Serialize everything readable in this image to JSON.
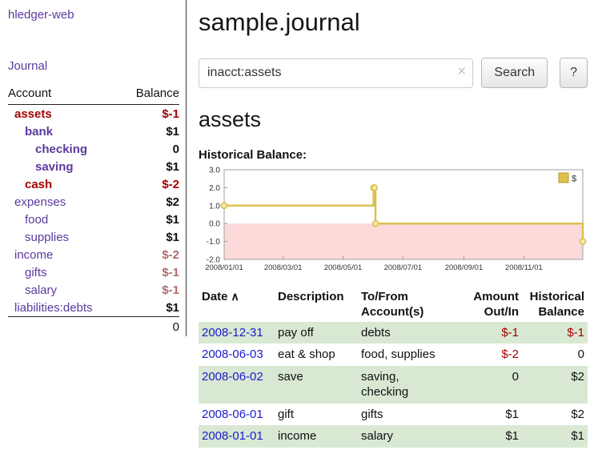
{
  "colors": {
    "link_purple": "#5b3a9e",
    "negative_strong": "#a40000",
    "negative_soft": "#b06a6a",
    "date_blue": "#1a1acd",
    "row_green": "#d9e8d3",
    "chart_line": "#dcc050",
    "chart_marker_fill": "#f5e8ae",
    "chart_negative_fill": "#fcdada"
  },
  "sidebar": {
    "app_title": "hledger-web",
    "nav": {
      "journal": "Journal"
    },
    "accounts": {
      "headers": {
        "account": "Account",
        "balance": "Balance"
      },
      "rows": [
        {
          "account": "assets",
          "balance": "$-1",
          "indent": 0,
          "bold": true,
          "name_color": "maroon",
          "balance_negative": "strong"
        },
        {
          "account": "bank",
          "balance": "$1",
          "indent": 1,
          "bold": true,
          "name_color": "purple",
          "balance_negative": null
        },
        {
          "account": "checking",
          "balance": "0",
          "indent": 2,
          "bold": true,
          "name_color": "purple",
          "balance_negative": null
        },
        {
          "account": "saving",
          "balance": "$1",
          "indent": 2,
          "bold": true,
          "name_color": "purple",
          "balance_negative": null
        },
        {
          "account": "cash",
          "balance": "$-2",
          "indent": 1,
          "bold": true,
          "name_color": "maroon",
          "balance_negative": "strong"
        },
        {
          "account": "expenses",
          "balance": "$2",
          "indent": 0,
          "bold": false,
          "name_color": "purple",
          "balance_negative": null
        },
        {
          "account": "food",
          "balance": "$1",
          "indent": 1,
          "bold": false,
          "name_color": "purple",
          "balance_negative": null
        },
        {
          "account": "supplies",
          "balance": "$1",
          "indent": 1,
          "bold": false,
          "name_color": "purple",
          "balance_negative": null
        },
        {
          "account": "income",
          "balance": "$-2",
          "indent": 0,
          "bold": false,
          "name_color": "purple",
          "balance_negative": "soft"
        },
        {
          "account": "gifts",
          "balance": "$-1",
          "indent": 1,
          "bold": false,
          "name_color": "purple",
          "balance_negative": "soft"
        },
        {
          "account": "salary",
          "balance": "$-1",
          "indent": 1,
          "bold": false,
          "name_color": "purple",
          "balance_negative": "soft"
        },
        {
          "account": "liabilities:debts",
          "balance": "$1",
          "indent": 0,
          "bold": false,
          "name_color": "purple",
          "balance_negative": null
        }
      ],
      "total": "0"
    }
  },
  "main": {
    "title": "sample.journal",
    "search": {
      "value": "inacct:assets",
      "clear_icon": "×",
      "search_button": "Search",
      "help_button": "?"
    },
    "account_heading": "assets",
    "chart_label": "Historical Balance:"
  },
  "chart_data": {
    "type": "line",
    "title": "Historical Balance",
    "style": "step-after",
    "legend": {
      "position": "top-right",
      "entries": [
        "$"
      ]
    },
    "ylim": [
      -2.0,
      3.0
    ],
    "yticks": [
      3.0,
      2.0,
      1.0,
      0.0,
      -1.0,
      -2.0
    ],
    "xticks": [
      {
        "date": "2008-01-01",
        "label": "2008/01/01"
      },
      {
        "date": "2008-03-01",
        "label": "2008/03/01"
      },
      {
        "date": "2008-05-01",
        "label": "2008/05/01"
      },
      {
        "date": "2008-07-01",
        "label": "2008/07/01"
      },
      {
        "date": "2008-09-01",
        "label": "2008/09/01"
      },
      {
        "date": "2008-11-01",
        "label": "2008/11/01"
      }
    ],
    "series": [
      {
        "name": "$",
        "x": [
          "2008-01-01",
          "2008-06-01",
          "2008-06-02",
          "2008-06-03",
          "2008-12-31"
        ],
        "y": [
          1,
          2,
          2,
          0,
          -1
        ]
      }
    ]
  },
  "register": {
    "headers": [
      "Date",
      "Description",
      "To/From Account(s)",
      "Amount Out/In",
      "Historical Balance"
    ],
    "sort_icon": "∧",
    "rows": [
      {
        "date": "2008-12-31",
        "description": "pay off",
        "accounts": "debts",
        "amount": "$-1",
        "amount_negative": true,
        "balance": "$-1",
        "balance_negative": true
      },
      {
        "date": "2008-06-03",
        "description": "eat & shop",
        "accounts": "food, supplies",
        "amount": "$-2",
        "amount_negative": true,
        "balance": "0",
        "balance_negative": false
      },
      {
        "date": "2008-06-02",
        "description": "save",
        "accounts": "saving, checking",
        "amount": "0",
        "amount_negative": false,
        "balance": "$2",
        "balance_negative": false
      },
      {
        "date": "2008-06-01",
        "description": "gift",
        "accounts": "gifts",
        "amount": "$1",
        "amount_negative": false,
        "balance": "$2",
        "balance_negative": false
      },
      {
        "date": "2008-01-01",
        "description": "income",
        "accounts": "salary",
        "amount": "$1",
        "amount_negative": false,
        "balance": "$1",
        "balance_negative": false
      }
    ]
  }
}
